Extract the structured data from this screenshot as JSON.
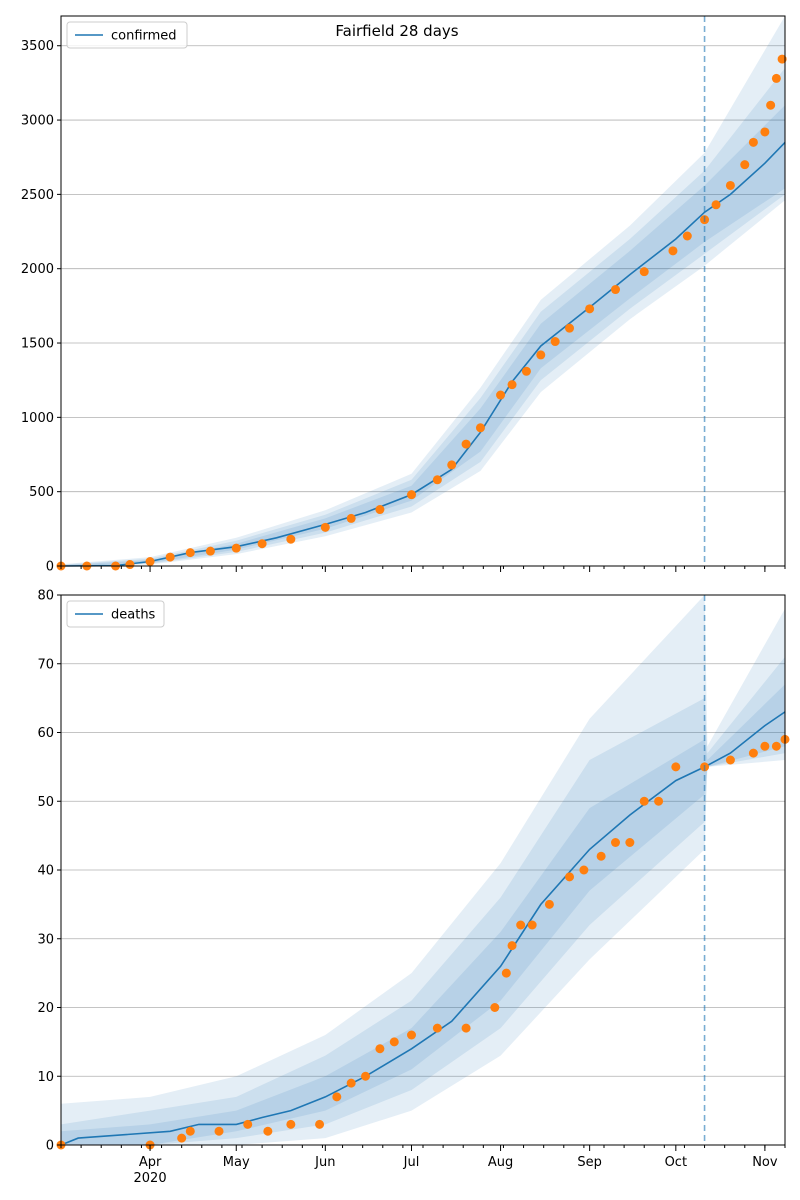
{
  "title": "Fairfield 28 days",
  "colors": {
    "model": "#1f77b4",
    "observed": "#ff7f0e",
    "band": "#1f77b4",
    "grid": "#b0b0b0"
  },
  "x_axis": {
    "start": "2020-03-01",
    "end": "2020-11-08",
    "tick_labels": [
      {
        "date": "2020-04-01",
        "label": "Apr",
        "sub": "2020"
      },
      {
        "date": "2020-05-01",
        "label": "May",
        "sub": ""
      },
      {
        "date": "2020-06-01",
        "label": "Jun",
        "sub": ""
      },
      {
        "date": "2020-07-01",
        "label": "Jul",
        "sub": ""
      },
      {
        "date": "2020-08-01",
        "label": "Aug",
        "sub": ""
      },
      {
        "date": "2020-09-01",
        "label": "Sep",
        "sub": ""
      },
      {
        "date": "2020-10-01",
        "label": "Oct",
        "sub": ""
      },
      {
        "date": "2020-11-01",
        "label": "Nov",
        "sub": ""
      }
    ],
    "forecast_start": "2020-10-11"
  },
  "chart_data": [
    {
      "type": "line",
      "legend": "confirmed",
      "legend_position": "top-left",
      "grid": true,
      "ylim": [
        0,
        3700
      ],
      "yticks": [
        0,
        500,
        1000,
        1500,
        2000,
        2500,
        3000,
        3500
      ],
      "model": {
        "x": [
          "2020-03-01",
          "2020-03-20",
          "2020-04-01",
          "2020-04-15",
          "2020-05-01",
          "2020-05-15",
          "2020-06-01",
          "2020-06-15",
          "2020-07-01",
          "2020-07-15",
          "2020-07-25",
          "2020-08-05",
          "2020-08-15",
          "2020-09-01",
          "2020-09-15",
          "2020-10-01",
          "2020-10-11",
          "2020-10-20",
          "2020-11-01",
          "2020-11-08"
        ],
        "y": [
          0,
          3,
          30,
          90,
          130,
          190,
          280,
          360,
          480,
          650,
          900,
          1240,
          1480,
          1740,
          1960,
          2200,
          2380,
          2500,
          2710,
          2850
        ]
      },
      "bands": [
        {
          "x": [
            "2020-03-01",
            "2020-04-01",
            "2020-05-01",
            "2020-06-01",
            "2020-07-01",
            "2020-07-25",
            "2020-08-15",
            "2020-09-15",
            "2020-10-11",
            "2020-11-08"
          ],
          "lo": [
            0,
            20,
            110,
            250,
            440,
            770,
            1330,
            1800,
            2180,
            2540
          ],
          "hi": [
            5,
            40,
            150,
            320,
            540,
            1060,
            1630,
            2120,
            2560,
            3100
          ]
        },
        {
          "x": [
            "2020-03-01",
            "2020-04-01",
            "2020-05-01",
            "2020-06-01",
            "2020-07-01",
            "2020-07-25",
            "2020-08-15",
            "2020-09-15",
            "2020-10-11",
            "2020-11-08"
          ],
          "lo": [
            0,
            15,
            95,
            225,
            400,
            700,
            1250,
            1730,
            2100,
            2500
          ],
          "hi": [
            8,
            50,
            170,
            345,
            580,
            1130,
            1710,
            2200,
            2660,
            3350
          ]
        },
        {
          "x": [
            "2020-03-01",
            "2020-04-01",
            "2020-05-01",
            "2020-06-01",
            "2020-07-01",
            "2020-07-25",
            "2020-08-15",
            "2020-09-15",
            "2020-10-11",
            "2020-11-08"
          ],
          "lo": [
            0,
            10,
            80,
            200,
            360,
            640,
            1170,
            1660,
            2020,
            2460
          ],
          "hi": [
            12,
            60,
            190,
            375,
            620,
            1200,
            1790,
            2290,
            2780,
            3700
          ]
        }
      ],
      "observed": {
        "x": [
          "2020-03-01",
          "2020-03-10",
          "2020-03-20",
          "2020-03-25",
          "2020-04-01",
          "2020-04-08",
          "2020-04-15",
          "2020-04-22",
          "2020-05-01",
          "2020-05-10",
          "2020-05-20",
          "2020-06-01",
          "2020-06-10",
          "2020-06-20",
          "2020-07-01",
          "2020-07-10",
          "2020-07-15",
          "2020-07-20",
          "2020-07-25",
          "2020-08-01",
          "2020-08-05",
          "2020-08-10",
          "2020-08-15",
          "2020-08-20",
          "2020-08-25",
          "2020-09-01",
          "2020-09-10",
          "2020-09-20",
          "2020-09-30",
          "2020-10-05",
          "2020-10-11",
          "2020-10-15",
          "2020-10-20",
          "2020-10-25",
          "2020-10-28",
          "2020-11-01",
          "2020-11-03",
          "2020-11-05",
          "2020-11-07"
        ],
        "y": [
          0,
          0,
          0,
          10,
          30,
          60,
          90,
          100,
          120,
          150,
          180,
          260,
          320,
          380,
          480,
          580,
          680,
          820,
          930,
          1150,
          1220,
          1310,
          1420,
          1510,
          1600,
          1730,
          1860,
          1980,
          2120,
          2220,
          2330,
          2430,
          2560,
          2700,
          2850,
          2920,
          3100,
          3280,
          3410
        ]
      }
    },
    {
      "type": "line",
      "legend": "deaths",
      "legend_position": "top-left",
      "grid": true,
      "ylim": [
        0,
        80
      ],
      "yticks": [
        0,
        10,
        20,
        30,
        40,
        50,
        60,
        70,
        80
      ],
      "model": {
        "x": [
          "2020-03-01",
          "2020-03-07",
          "2020-04-08",
          "2020-04-18",
          "2020-05-01",
          "2020-05-10",
          "2020-05-20",
          "2020-06-01",
          "2020-06-15",
          "2020-07-01",
          "2020-07-15",
          "2020-08-01",
          "2020-08-15",
          "2020-09-01",
          "2020-09-15",
          "2020-10-01",
          "2020-10-11",
          "2020-10-20",
          "2020-11-01",
          "2020-11-08"
        ],
        "y": [
          0,
          1,
          2,
          3,
          3,
          4,
          5,
          7,
          10,
          14,
          18,
          26,
          35,
          43,
          48,
          53,
          55,
          57,
          61,
          63
        ]
      },
      "bands": [
        {
          "x": [
            "2020-03-01",
            "2020-04-01",
            "2020-05-01",
            "2020-06-01",
            "2020-07-01",
            "2020-08-01",
            "2020-09-01",
            "2020-10-11",
            "2020-10-12",
            "2020-11-08"
          ],
          "lo": [
            0,
            0,
            2,
            5,
            11,
            21,
            37,
            51,
            55,
            58
          ],
          "hi": [
            2,
            3,
            5,
            10,
            17,
            31,
            49,
            59,
            56,
            67
          ]
        },
        {
          "x": [
            "2020-03-01",
            "2020-04-01",
            "2020-05-01",
            "2020-06-01",
            "2020-07-01",
            "2020-08-01",
            "2020-09-01",
            "2020-10-11",
            "2020-10-12",
            "2020-11-08"
          ],
          "lo": [
            0,
            0,
            1,
            3,
            8,
            17,
            32,
            47,
            55,
            57
          ],
          "hi": [
            3,
            5,
            7,
            13,
            21,
            36,
            56,
            65,
            57,
            71
          ]
        },
        {
          "x": [
            "2020-03-01",
            "2020-04-01",
            "2020-05-01",
            "2020-06-01",
            "2020-07-01",
            "2020-08-01",
            "2020-09-01",
            "2020-10-11",
            "2020-10-12",
            "2020-11-08"
          ],
          "lo": [
            0,
            0,
            0,
            1,
            5,
            13,
            27,
            43,
            55,
            56
          ],
          "hi": [
            6,
            7,
            10,
            16,
            25,
            41,
            62,
            80,
            58,
            78
          ]
        }
      ],
      "observed": {
        "x": [
          "2020-03-01",
          "2020-04-01",
          "2020-04-12",
          "2020-04-15",
          "2020-04-25",
          "2020-05-05",
          "2020-05-12",
          "2020-05-20",
          "2020-05-30",
          "2020-06-05",
          "2020-06-10",
          "2020-06-15",
          "2020-06-20",
          "2020-06-25",
          "2020-07-01",
          "2020-07-10",
          "2020-07-20",
          "2020-07-30",
          "2020-08-03",
          "2020-08-05",
          "2020-08-08",
          "2020-08-12",
          "2020-08-18",
          "2020-08-25",
          "2020-08-30",
          "2020-09-05",
          "2020-09-10",
          "2020-09-15",
          "2020-09-20",
          "2020-09-25",
          "2020-10-01",
          "2020-10-11",
          "2020-10-20",
          "2020-10-28",
          "2020-11-01",
          "2020-11-05",
          "2020-11-08"
        ],
        "y": [
          0,
          0,
          1,
          2,
          2,
          3,
          2,
          3,
          3,
          7,
          9,
          10,
          14,
          15,
          16,
          17,
          17,
          20,
          25,
          29,
          32,
          32,
          35,
          39,
          40,
          42,
          44,
          44,
          50,
          50,
          55,
          55,
          56,
          57,
          58,
          58,
          59
        ]
      }
    }
  ]
}
